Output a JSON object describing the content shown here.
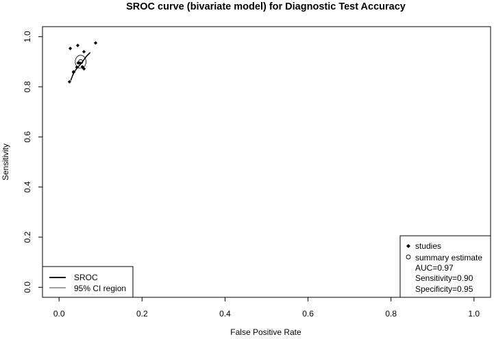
{
  "chart_data": {
    "type": "scatter",
    "title": "SROC curve (bivariate model) for Diagnostic Test Accuracy",
    "xlabel": "False Positive Rate",
    "ylabel": "Sensitivity",
    "xlim": [
      -0.04,
      1.04
    ],
    "ylim": [
      -0.04,
      1.04
    ],
    "x_ticks": [
      {
        "value": 0.0,
        "label": "0.0"
      },
      {
        "value": 0.2,
        "label": "0.2"
      },
      {
        "value": 0.4,
        "label": "0.4"
      },
      {
        "value": 0.6,
        "label": "0.6"
      },
      {
        "value": 0.8,
        "label": "0.8"
      },
      {
        "value": 1.0,
        "label": "1.0"
      }
    ],
    "y_ticks": [
      {
        "value": 0.0,
        "label": "0.0"
      },
      {
        "value": 0.2,
        "label": "0.2"
      },
      {
        "value": 0.4,
        "label": "0.4"
      },
      {
        "value": 0.6,
        "label": "0.6"
      },
      {
        "value": 0.8,
        "label": "0.8"
      },
      {
        "value": 1.0,
        "label": "1.0"
      }
    ],
    "grid": false,
    "series": [
      {
        "name": "studies",
        "marker": "diamond",
        "x": [
          0.027,
          0.035,
          0.045,
          0.05,
          0.06,
          0.088,
          0.025,
          0.035,
          0.043,
          0.046,
          0.056,
          0.06
        ],
        "y": [
          0.953,
          0.86,
          0.965,
          0.895,
          0.94,
          0.975,
          0.82,
          0.858,
          0.878,
          0.895,
          0.88,
          0.872
        ]
      },
      {
        "name": "SROC",
        "x": [
          0.028,
          0.035,
          0.042,
          0.05,
          0.058,
          0.066,
          0.075
        ],
        "y": [
          0.825,
          0.855,
          0.872,
          0.887,
          0.904,
          0.922,
          0.937
        ]
      },
      {
        "name": "summary estimate",
        "x": [
          0.052
        ],
        "y": [
          0.9
        ]
      },
      {
        "name": "95% CI region",
        "center": [
          0.052,
          0.9
        ],
        "radius_x": 0.013,
        "radius_y": 0.026
      }
    ],
    "legend_left": {
      "position": "bottom-left",
      "items": [
        {
          "label": "SROC",
          "style": "thick-line"
        },
        {
          "label": "95% CI region",
          "style": "thin-line"
        }
      ]
    },
    "legend_right": {
      "position": "bottom-right",
      "items": [
        {
          "label": "studies",
          "symbol": "diamond"
        },
        {
          "label": "summary estimate",
          "symbol": "circle"
        },
        {
          "label": "AUC=0.97",
          "symbol": ""
        },
        {
          "label": "Sensitivity=0.90",
          "symbol": ""
        },
        {
          "label": "Specificity=0.95",
          "symbol": ""
        }
      ]
    }
  }
}
